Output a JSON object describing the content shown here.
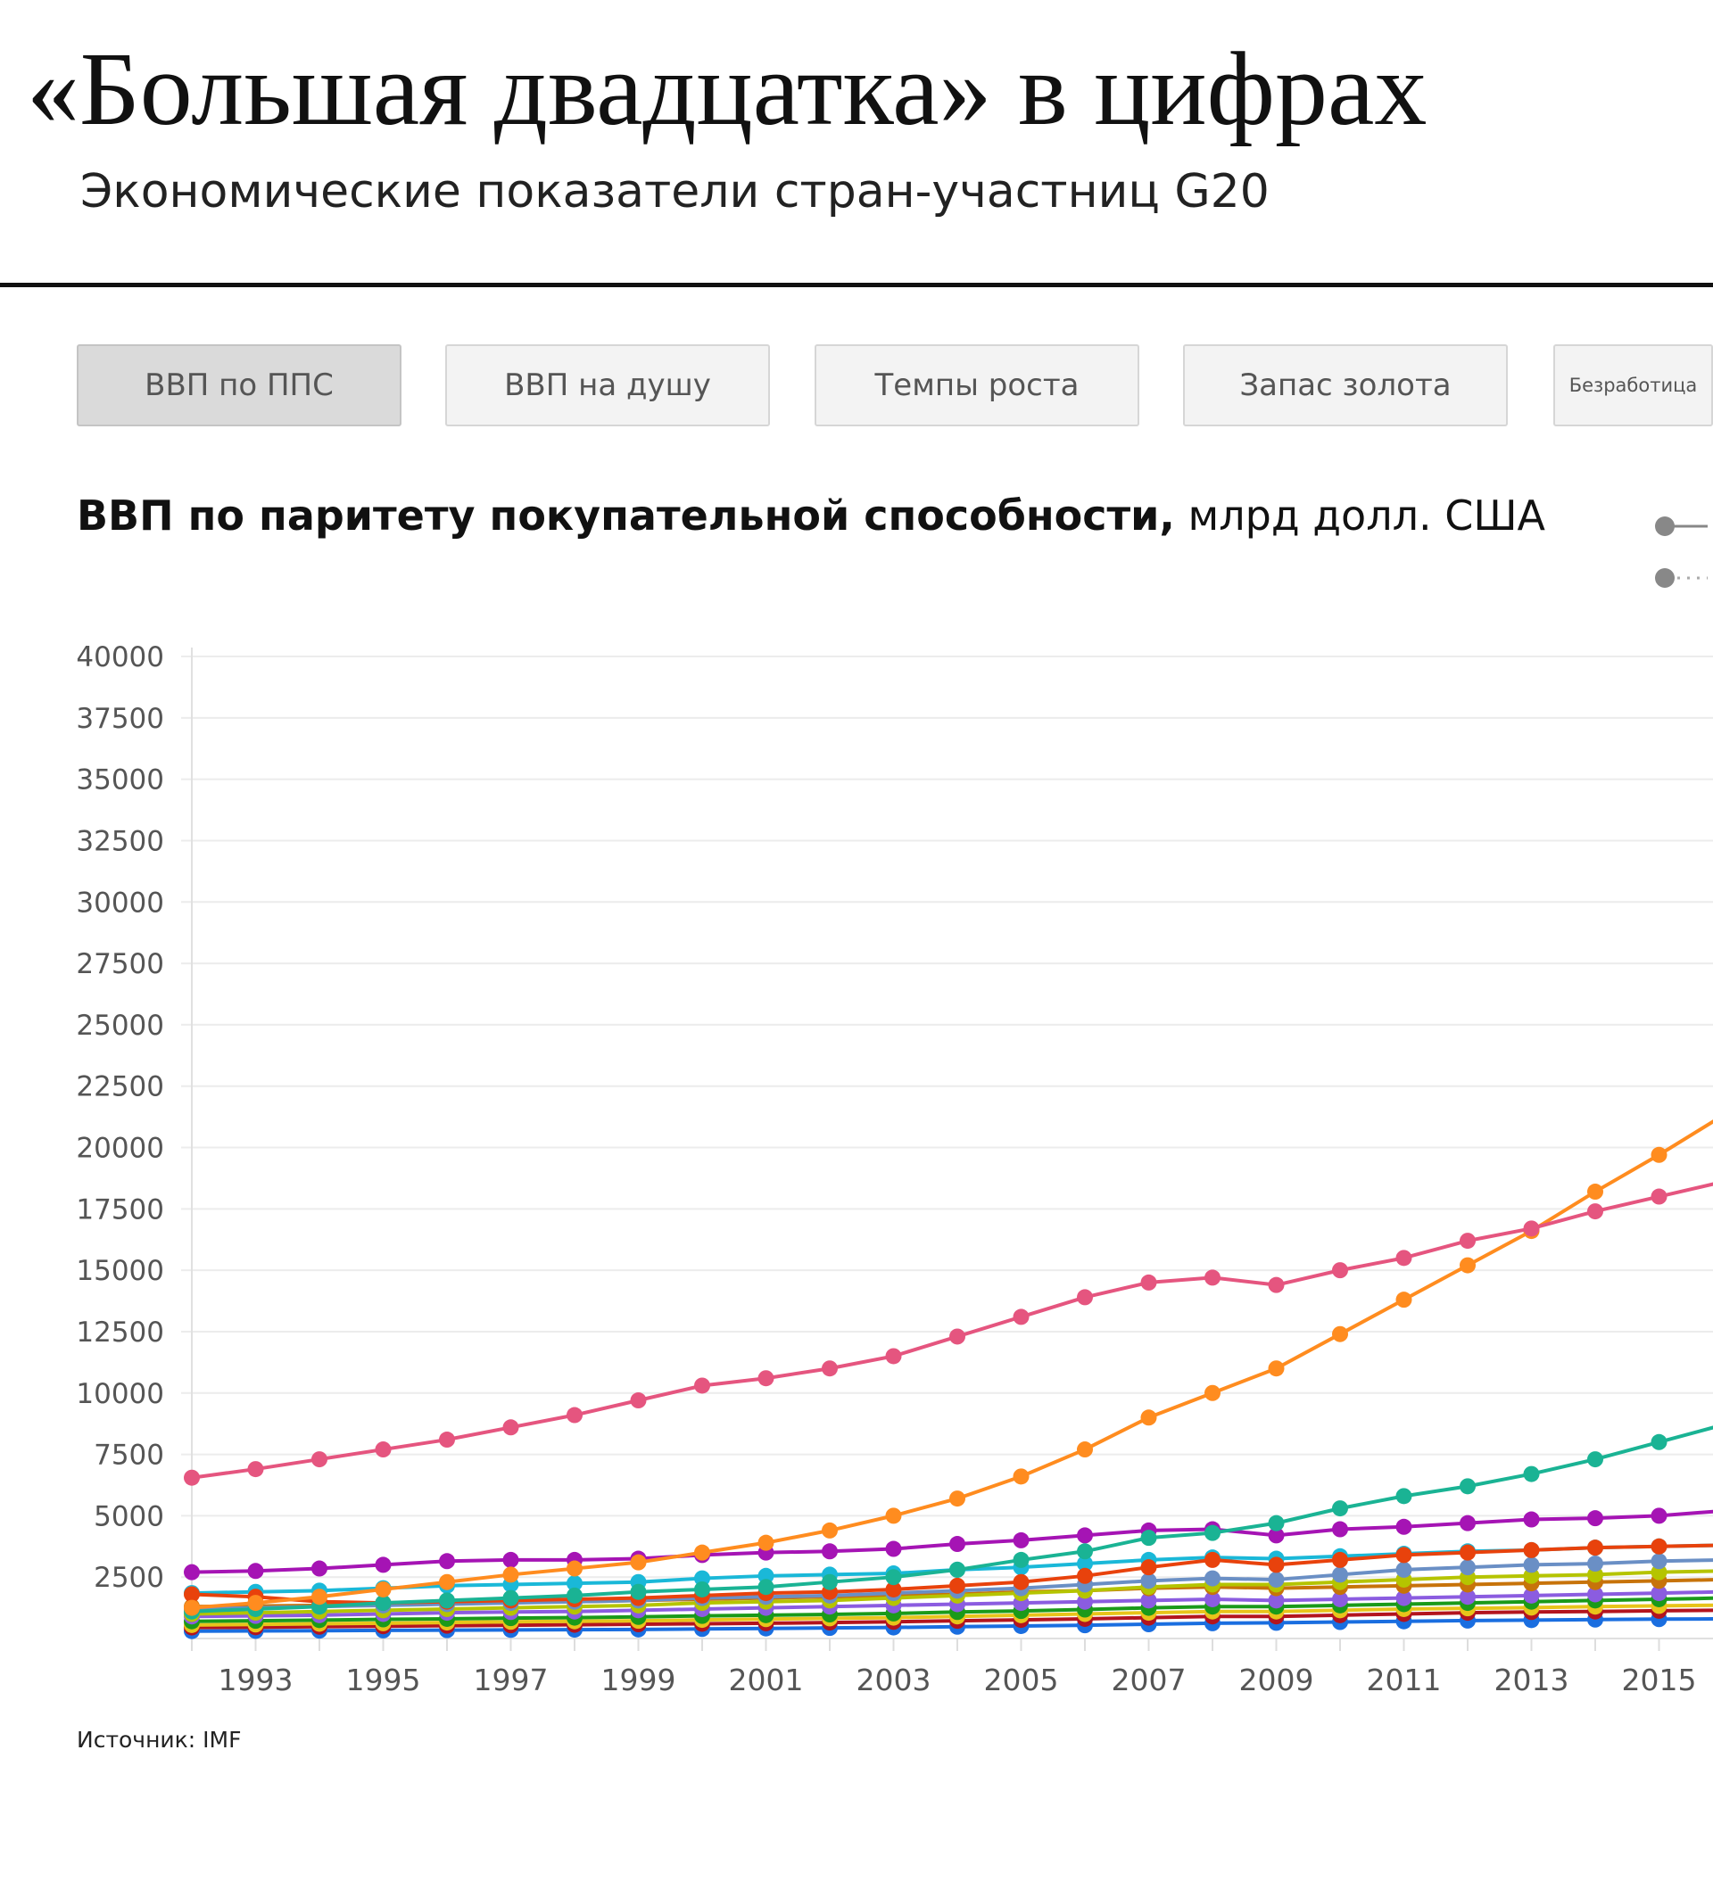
{
  "header": {
    "title": "«Большая двадцатка» в цифрах",
    "subtitle": "Экономические показатели стран-участниц G20"
  },
  "tabs": [
    {
      "label": "ВВП по ППС",
      "active": true
    },
    {
      "label": "ВВП на душу",
      "active": false
    },
    {
      "label": "Темпы роста",
      "active": false
    },
    {
      "label": "Запас золота",
      "active": false
    },
    {
      "label": "Безработица",
      "active": false
    }
  ],
  "chart_header": {
    "title_bold": "ВВП по паритету покупательной способности,",
    "title_unit": "млрд долл. США"
  },
  "source": "Источник: IMF",
  "legend_styles": [
    {
      "style": "solid",
      "color": "#888888"
    },
    {
      "style": "dotted",
      "color": "#888888"
    }
  ],
  "chart_data": {
    "type": "line",
    "title": "ВВП по паритету покупательной способности, млрд долл. США",
    "xlabel": "",
    "ylabel": "",
    "ylim": [
      0,
      40000
    ],
    "yticks": [
      2500,
      5000,
      7500,
      10000,
      12500,
      15000,
      17500,
      20000,
      22500,
      25000,
      27500,
      30000,
      32500,
      35000,
      37500,
      40000
    ],
    "x": [
      1992,
      1993,
      1994,
      1995,
      1996,
      1997,
      1998,
      1999,
      2000,
      2001,
      2002,
      2003,
      2004,
      2005,
      2006,
      2007,
      2008,
      2009,
      2010,
      2011,
      2012,
      2013,
      2014,
      2015,
      2016
    ],
    "xtick_labels": [
      "1993",
      "1995",
      "1997",
      "1999",
      "2001",
      "2003",
      "2005",
      "2007",
      "2009",
      "2011",
      "2013",
      "2015"
    ],
    "grid": true,
    "series": [
      {
        "color": "#e5557f",
        "values": [
          6550,
          6900,
          7300,
          7700,
          8100,
          8600,
          9100,
          9700,
          10300,
          10600,
          11000,
          11500,
          12300,
          13100,
          13900,
          14500,
          14700,
          14400,
          15000,
          15500,
          16200,
          16700,
          17400,
          18000,
          18600
        ]
      },
      {
        "color": "#ff8c1f",
        "values": [
          1250,
          1450,
          1700,
          2000,
          2300,
          2600,
          2850,
          3100,
          3500,
          3900,
          4400,
          5000,
          5700,
          6600,
          7700,
          9000,
          10000,
          11000,
          12400,
          13800,
          15200,
          16600,
          18200,
          19700,
          21300
        ]
      },
      {
        "color": "#1ab394",
        "values": [
          1100,
          1200,
          1300,
          1450,
          1550,
          1650,
          1750,
          1900,
          2000,
          2100,
          2300,
          2500,
          2800,
          3200,
          3550,
          4100,
          4300,
          4700,
          5300,
          5800,
          6200,
          6700,
          7300,
          8000,
          8700
        ]
      },
      {
        "color": "#a514b4",
        "values": [
          2700,
          2750,
          2850,
          3000,
          3150,
          3200,
          3200,
          3250,
          3400,
          3500,
          3550,
          3650,
          3850,
          4000,
          4200,
          4400,
          4450,
          4200,
          4450,
          4550,
          4700,
          4850,
          4900,
          5000,
          5200
        ]
      },
      {
        "color": "#e8420c",
        "values": [
          1800,
          1700,
          1500,
          1450,
          1500,
          1550,
          1600,
          1650,
          1750,
          1850,
          1900,
          2000,
          2150,
          2300,
          2550,
          2900,
          3200,
          3000,
          3200,
          3400,
          3500,
          3600,
          3700,
          3750,
          3800
        ]
      },
      {
        "color": "#1ab8d8",
        "values": [
          1850,
          1900,
          1950,
          2050,
          2150,
          2200,
          2250,
          2300,
          2450,
          2550,
          2600,
          2650,
          2800,
          2900,
          3050,
          3200,
          3300,
          3250,
          3350,
          3450,
          3550,
          3600,
          3700,
          3750,
          3800
        ]
      },
      {
        "color": "#6a8fc5",
        "values": [
          1200,
          1250,
          1300,
          1350,
          1400,
          1450,
          1500,
          1550,
          1650,
          1700,
          1750,
          1850,
          1950,
          2050,
          2200,
          2350,
          2450,
          2400,
          2600,
          2800,
          2900,
          3000,
          3050,
          3150,
          3200
        ]
      },
      {
        "color": "#b5c400",
        "values": [
          1000,
          1050,
          1100,
          1150,
          1200,
          1250,
          1300,
          1350,
          1450,
          1500,
          1550,
          1650,
          1750,
          1850,
          1950,
          2100,
          2200,
          2200,
          2300,
          2400,
          2500,
          2550,
          2600,
          2700,
          2750
        ]
      },
      {
        "color": "#c7730a",
        "values": [
          1300,
          1320,
          1350,
          1400,
          1450,
          1500,
          1500,
          1550,
          1600,
          1650,
          1700,
          1750,
          1800,
          1900,
          1950,
          2050,
          2100,
          2050,
          2100,
          2150,
          2200,
          2250,
          2300,
          2350,
          2400
        ]
      },
      {
        "color": "#8b5ce0",
        "values": [
          900,
          920,
          950,
          1000,
          1050,
          1080,
          1100,
          1150,
          1200,
          1250,
          1300,
          1350,
          1400,
          1450,
          1500,
          1550,
          1600,
          1550,
          1600,
          1650,
          1700,
          1750,
          1800,
          1850,
          1900
        ]
      },
      {
        "color": "#1a9a1a",
        "values": [
          700,
          720,
          750,
          780,
          800,
          830,
          850,
          880,
          920,
          950,
          980,
          1020,
          1080,
          1120,
          1180,
          1250,
          1300,
          1300,
          1350,
          1400,
          1450,
          1500,
          1550,
          1600,
          1650
        ]
      },
      {
        "color": "#e8c41a",
        "values": [
          550,
          570,
          600,
          620,
          650,
          680,
          700,
          720,
          760,
          790,
          820,
          850,
          900,
          950,
          1000,
          1050,
          1100,
          1100,
          1150,
          1200,
          1230,
          1260,
          1300,
          1330,
          1360
        ]
      },
      {
        "color": "#b3141e",
        "values": [
          450,
          460,
          480,
          500,
          520,
          540,
          560,
          580,
          600,
          620,
          650,
          680,
          720,
          760,
          800,
          850,
          900,
          900,
          950,
          1000,
          1050,
          1080,
          1100,
          1130,
          1150
        ]
      },
      {
        "color": "#1a6ee0",
        "values": [
          300,
          310,
          320,
          330,
          340,
          350,
          360,
          370,
          390,
          410,
          430,
          450,
          480,
          510,
          540,
          580,
          620,
          640,
          670,
          700,
          730,
          750,
          770,
          790,
          800
        ]
      }
    ]
  }
}
